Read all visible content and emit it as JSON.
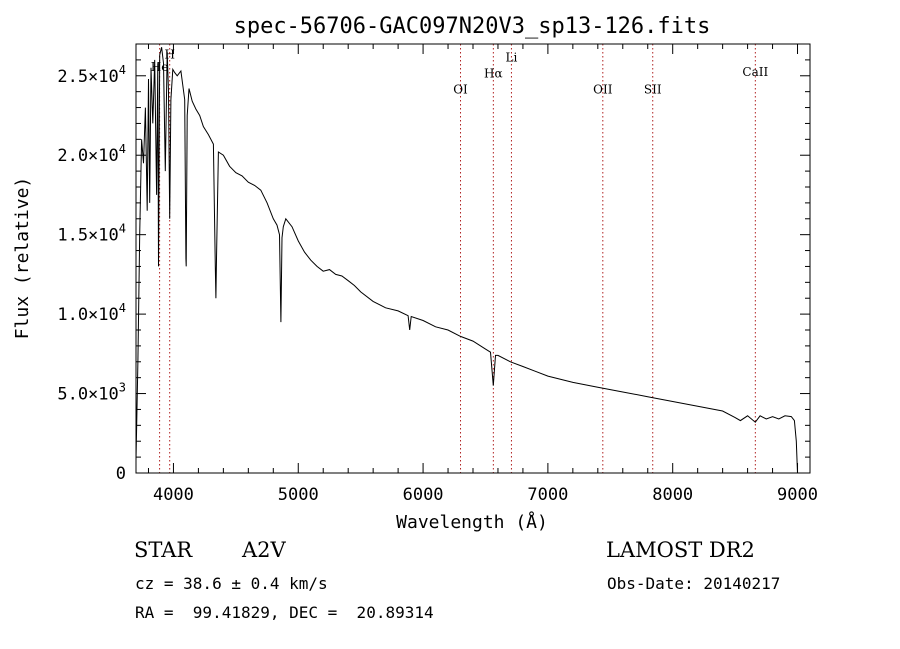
{
  "chart_data": {
    "type": "line",
    "title": "spec-56706-GAC097N20V3_sp13-126.fits",
    "xlabel": "Wavelength (Å)",
    "ylabel": "Flux (relative)",
    "xlim": [
      3700,
      9100
    ],
    "ylim": [
      0,
      27000
    ],
    "x_ticks": [
      4000,
      5000,
      6000,
      7000,
      8000,
      9000
    ],
    "x_tick_labels": [
      "4000",
      "5000",
      "6000",
      "7000",
      "8000",
      "9000"
    ],
    "y_ticks": [
      0,
      5000,
      10000,
      15000,
      20000,
      25000
    ],
    "y_tick_labels": [
      {
        "mantissa": "0",
        "exp": ""
      },
      {
        "mantissa": "5.0×10",
        "exp": "3"
      },
      {
        "mantissa": "1.0×10",
        "exp": "4"
      },
      {
        "mantissa": "1.5×10",
        "exp": "4"
      },
      {
        "mantissa": "2.0×10",
        "exp": "4"
      },
      {
        "mantissa": "2.5×10",
        "exp": "4"
      }
    ],
    "spectral_lines": [
      {
        "label": "He",
        "x": 3889,
        "label_flux": 25300
      },
      {
        "label": "H",
        "x": 3970,
        "label_flux": 26100
      },
      {
        "label": "OI",
        "x": 6300,
        "label_flux": 23900
      },
      {
        "label": "Hα",
        "x": 6563,
        "label_flux": 24900
      },
      {
        "label": "Li",
        "x": 6708,
        "label_flux": 25900
      },
      {
        "label": "OII",
        "x": 7440,
        "label_flux": 23900
      },
      {
        "label": "SII",
        "x": 7840,
        "label_flux": 23900
      },
      {
        "label": "CaII",
        "x": 8662,
        "label_flux": 25000
      }
    ],
    "series": [
      {
        "x": [
          3700,
          3715,
          3730,
          3745,
          3760,
          3775,
          3790,
          3800,
          3810,
          3820,
          3835,
          3850,
          3865,
          3875,
          3880,
          3890,
          3905,
          3920,
          3935,
          3950,
          3960,
          3970,
          3980,
          3995,
          4010,
          4030,
          4060,
          4090,
          4100,
          4102,
          4110,
          4125,
          4150,
          4180,
          4210,
          4240,
          4280,
          4320,
          4335,
          4340,
          4345,
          4360,
          4400,
          4450,
          4500,
          4550,
          4600,
          4650,
          4700,
          4750,
          4800,
          4830,
          4850,
          4861,
          4870,
          4880,
          4900,
          4950,
          5000,
          5050,
          5100,
          5150,
          5200,
          5250,
          5300,
          5350,
          5400,
          5450,
          5500,
          5600,
          5700,
          5800,
          5880,
          5893,
          5905,
          6000,
          6100,
          6200,
          6300,
          6400,
          6500,
          6540,
          6563,
          6580,
          6600,
          6700,
          6800,
          6900,
          7000,
          7200,
          7400,
          7600,
          7800,
          8000,
          8200,
          8400,
          8498,
          8542,
          8600,
          8662,
          8700,
          8750,
          8800,
          8850,
          8900,
          8950,
          8975,
          8990,
          9000
        ],
        "y": [
          800,
          7000,
          15000,
          21000,
          19500,
          23000,
          16500,
          24800,
          17000,
          25500,
          22000,
          26000,
          17500,
          25800,
          13000,
          26300,
          26800,
          25800,
          19000,
          26500,
          24000,
          16000,
          23500,
          25400,
          25200,
          25000,
          25300,
          23500,
          13500,
          13000,
          22500,
          24200,
          23400,
          22900,
          22500,
          21800,
          21300,
          20700,
          13000,
          11000,
          13500,
          20200,
          20000,
          19300,
          18900,
          18700,
          18300,
          18100,
          17800,
          17000,
          16000,
          15600,
          15000,
          9500,
          14800,
          15500,
          16000,
          15500,
          14600,
          13900,
          13400,
          13000,
          12700,
          12800,
          12500,
          12400,
          12100,
          11800,
          11400,
          10800,
          10400,
          10200,
          9900,
          9000,
          9850,
          9600,
          9200,
          9000,
          8600,
          8300,
          7800,
          7600,
          5500,
          7400,
          7400,
          7000,
          6700,
          6400,
          6100,
          5700,
          5400,
          5100,
          4800,
          4500,
          4200,
          3900,
          3500,
          3300,
          3600,
          3200,
          3600,
          3400,
          3550,
          3400,
          3600,
          3550,
          3300,
          2000,
          0
        ]
      }
    ]
  },
  "info": {
    "object_type": "STAR",
    "subclass": "A2V",
    "survey": "LAMOST DR2",
    "cz": "cz = 38.6 ± 0.4 km/s",
    "obs_date": "Obs-Date: 20140217",
    "coords": "RA =  99.41829, DEC =  20.89314"
  }
}
